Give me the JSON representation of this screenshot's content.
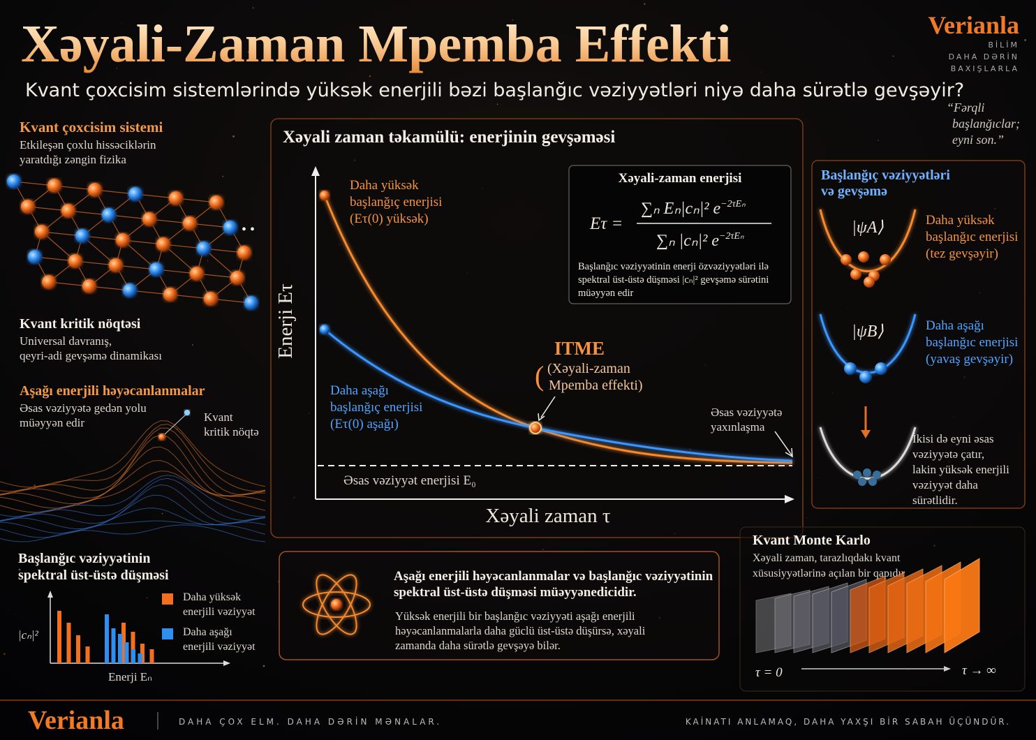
{
  "header": {
    "title": "Xəyali-Zaman Mpemba Effekti",
    "subtitle": "Kvant çoxcisim sistemlərində yüksək enerjili bəzi başlanğıc vəziyyətləri niyə daha sürətlə gevşəyir?"
  },
  "brand": {
    "name": "Verianla",
    "tagline": [
      "BİLİM",
      "DAHA DƏRİN",
      "BAXIŞLARLA"
    ]
  },
  "quote": [
    "“Fərqli",
    "başlanğıclar;",
    "eyni son.”"
  ],
  "left": {
    "sections": [
      {
        "title": "Kvant çoxcisim sistemi",
        "text": [
          "Etkileşən çoxlu hissəciklərin",
          "yaratdığı zəngin fizika"
        ]
      },
      {
        "title": "Kvant kritik nöqtəsi",
        "text": [
          "Universal davranış,",
          "qeyri-adi gevşəmə dinamikası"
        ]
      },
      {
        "title": "Aşağı enerjili həyəcanlanmalar",
        "text": [
          "Əsas vəziyyətə gedən yolu",
          "müəyyən edir"
        ]
      }
    ],
    "callout": [
      "Kvant",
      "kritik nöqtə"
    ]
  },
  "spectral": {
    "title": [
      "Başlanğıc vəziyyətinin",
      "spektral üst-üstə düşməsi"
    ],
    "y_label": "|cₙ|²",
    "x_label": "Enerji Eₙ",
    "legend": [
      {
        "label": [
          "Daha yüksək",
          "enerjili vəziyyət"
        ],
        "color": "#f26f1f"
      },
      {
        "label": [
          "Daha aşağı",
          "enerjili vəziyyət"
        ],
        "color": "#2f8ff0"
      }
    ]
  },
  "main": {
    "title": "Xəyali zaman təkamülü: enerjinin gevşəməsi",
    "y_label": "Enerji Eτ",
    "x_label": "Xəyali zaman τ",
    "high_label": [
      "Daha yüksək",
      "başlanğıç enerjisi",
      "(Eτ(0) yüksək)"
    ],
    "low_label": [
      "Daha aşağı",
      "başlanğıç enerjisi",
      "(Eτ(0) aşağı)"
    ],
    "itme_title": "ITME",
    "itme_text": [
      "(Xəyali-zaman",
      "Mpemba effekti)"
    ],
    "ground_approach": [
      "Əsas vəziyyətə",
      "yaxınlaşma"
    ],
    "ground_energy": "Əsas vəziyyət enerjisi E₀",
    "formula": {
      "title": "Xəyali-zaman enerjisi",
      "lhs": "Eτ =",
      "numerator": "∑ₙ Eₙ|cₙ|² e",
      "denominator": "∑ₙ |cₙ|² e",
      "exponent": "−2τEₙ",
      "note": [
        "Başlanğıc vəziyyətinin enerji özvəziyyətləri ilə",
        "spektral üst-üstə düşməsi |cₙ|² gevşəmə sürətini",
        "müəyyən edir"
      ]
    }
  },
  "states": {
    "title": [
      "Başlanğıç vəziyyətləri",
      "və gevşəmə"
    ],
    "a": {
      "ket": "|ψA⟩",
      "text": [
        "Daha yüksək",
        "başlanğıc enerjisi",
        "(tez gevşəyir)"
      ]
    },
    "b": {
      "ket": "|ψB⟩",
      "text": [
        "Daha aşağı",
        "başlanğıc enerjisi",
        "(yavaş gevşəyir)"
      ]
    },
    "end": [
      "İkisi də eyni əsas",
      "vəziyyətə çatır,",
      "lakin yüksək enerjili",
      "vəziyyət daha",
      "sürətlidir."
    ]
  },
  "summary": {
    "title": [
      "Aşağı enerjili həyəcanlanmalar və başlanğıc vəziyyətinin",
      "spektral üst-üstə düşməsi müəyyənedicidir."
    ],
    "text": [
      "Yüksək enerjili bir başlanğıc vəziyyəti aşağı enerjili",
      "həyəcanlanmalarla daha güclü üst-üstə düşürsə, xəyali",
      "zamanda daha sürətlə gevşəyə bilər."
    ]
  },
  "qmc": {
    "title": "Kvant Monte Karlo",
    "text": [
      "Xəyali zaman, tarazlıqdakı kvant",
      "xüsusiyyətlərinə açılan bir qapıdır"
    ],
    "start": "τ = 0",
    "end": "τ → ∞"
  },
  "footer": {
    "brand": "Verianla",
    "left": "DAHA ÇOX ELM. DAHA DƏRİN MƏNALAR.",
    "right": "KAİNATI ANLAMAQ, DAHA YAXŞI BİR SABAH ÜÇÜNDÜR."
  }
}
